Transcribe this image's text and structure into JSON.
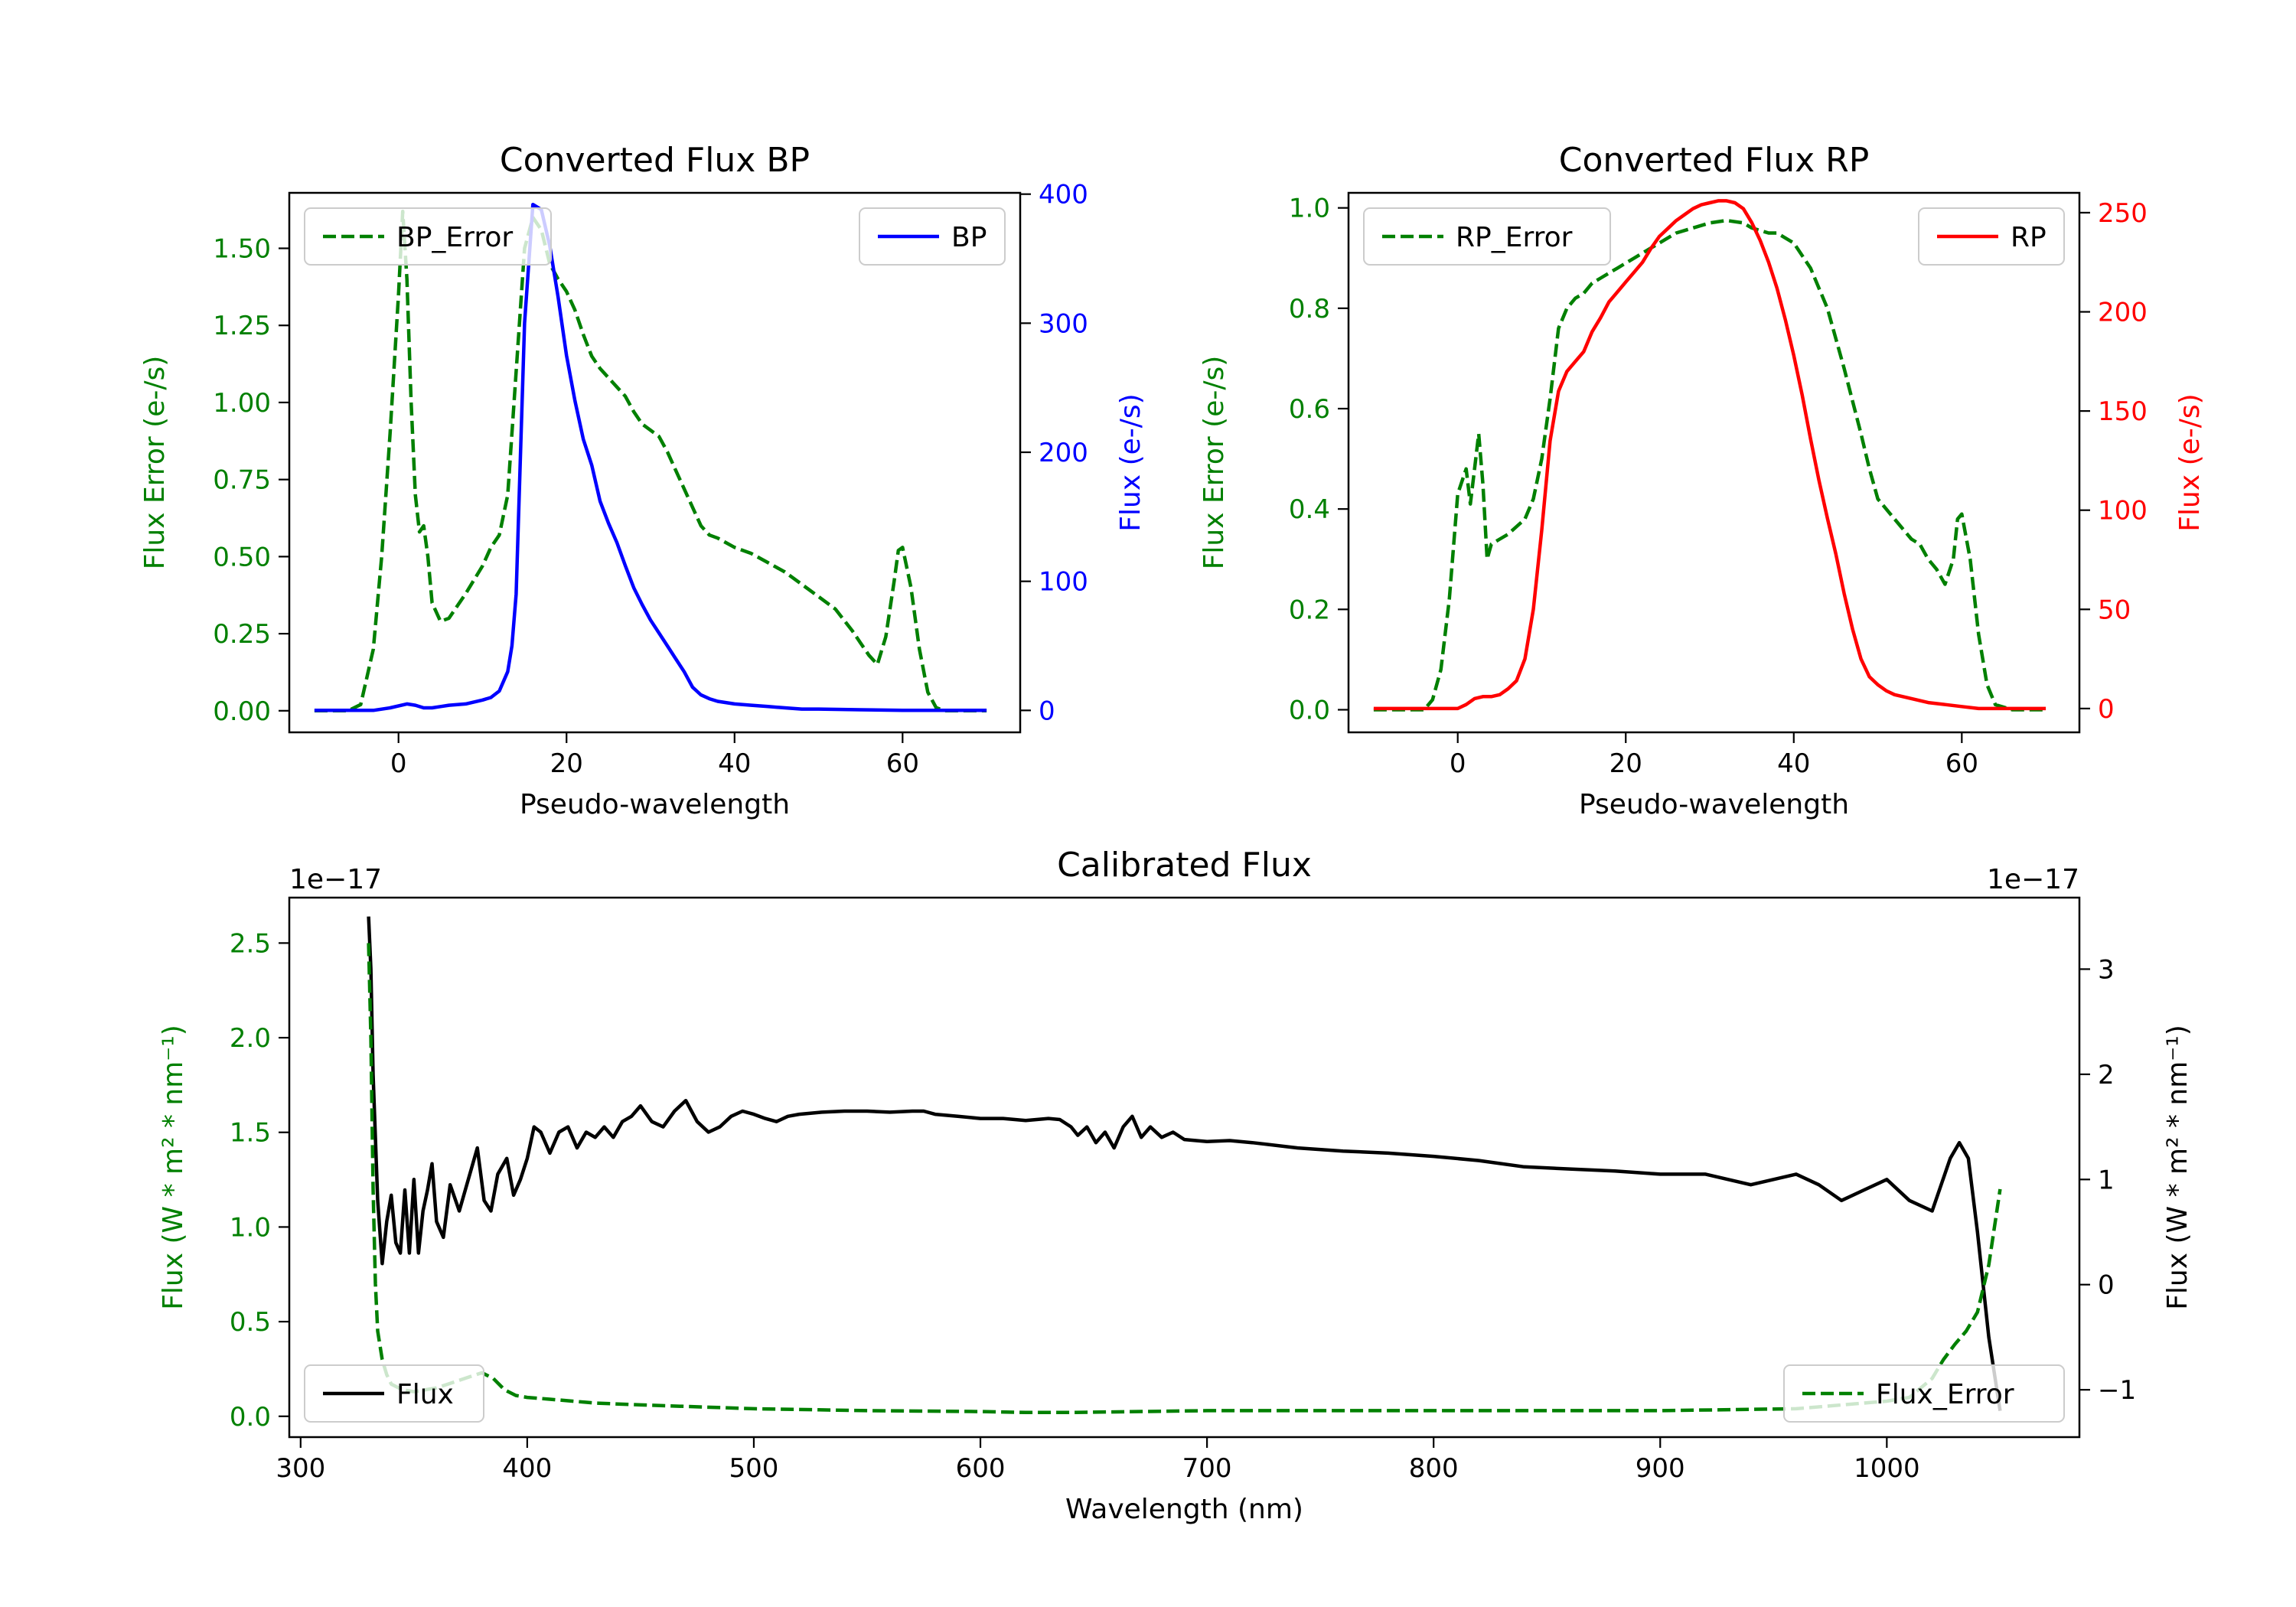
{
  "chart_data": [
    {
      "type": "line",
      "title": "Converted Flux BP",
      "xlabel": "Pseudo-wavelength",
      "xlim": [
        -13,
        74
      ],
      "xticks": [
        0,
        20,
        40,
        60
      ],
      "y_left": {
        "label": "Flux Error (e-/s)",
        "color": "#008000",
        "lim": [
          -0.07,
          1.68
        ],
        "ticks": [
          "0.00",
          "0.25",
          "0.50",
          "0.75",
          "1.00",
          "1.25",
          "1.50"
        ]
      },
      "y_right": {
        "label": "Flux (e-/s)",
        "color": "#0000ff",
        "lim": [
          -17,
          401
        ],
        "ticks": [
          "0",
          "100",
          "200",
          "300",
          "400"
        ]
      },
      "series": [
        {
          "name": "BP_Error",
          "axis": "left",
          "color": "#008000",
          "dash": true,
          "legend": "top-left",
          "x": [
            -10,
            -6,
            -4.5,
            -3,
            -2,
            -1,
            0,
            0.5,
            1,
            1.5,
            2,
            2.5,
            3,
            3.5,
            4,
            5,
            6,
            8,
            10,
            11,
            12,
            13,
            14,
            15,
            16,
            17,
            18,
            19,
            20,
            21,
            22,
            23,
            24,
            25,
            26,
            27,
            28,
            29,
            30,
            31,
            32,
            33,
            34,
            35,
            36,
            37,
            38,
            40,
            42,
            44,
            46,
            48,
            50,
            52,
            54,
            55,
            56,
            57,
            58,
            59,
            59.5,
            60,
            61,
            62,
            63,
            64,
            65,
            66,
            68,
            70
          ],
          "y": [
            0,
            0,
            0.02,
            0.2,
            0.5,
            0.9,
            1.35,
            1.62,
            1.4,
            1.0,
            0.7,
            0.58,
            0.6,
            0.5,
            0.35,
            0.29,
            0.3,
            0.38,
            0.47,
            0.53,
            0.57,
            0.7,
            1.1,
            1.5,
            1.6,
            1.56,
            1.45,
            1.4,
            1.36,
            1.3,
            1.22,
            1.15,
            1.11,
            1.08,
            1.05,
            1.02,
            0.97,
            0.93,
            0.91,
            0.89,
            0.84,
            0.78,
            0.72,
            0.66,
            0.6,
            0.57,
            0.56,
            0.53,
            0.51,
            0.48,
            0.45,
            0.41,
            0.37,
            0.33,
            0.26,
            0.22,
            0.18,
            0.15,
            0.24,
            0.42,
            0.52,
            0.53,
            0.4,
            0.2,
            0.06,
            0.01,
            0,
            0,
            0,
            0
          ]
        },
        {
          "name": "BP",
          "axis": "right",
          "color": "#0000ff",
          "dash": false,
          "legend": "top-right",
          "x": [
            -10,
            -3,
            -1,
            1,
            2,
            3,
            4,
            5,
            6,
            8,
            10,
            11,
            12,
            13,
            13.5,
            14,
            15,
            16,
            17,
            18,
            19,
            20,
            21,
            22,
            23,
            24,
            25,
            26,
            27,
            28,
            29,
            30,
            31,
            32,
            33,
            34,
            35,
            36,
            37,
            38,
            40,
            42,
            44,
            46,
            48,
            50,
            55,
            60,
            65,
            70
          ],
          "y": [
            0,
            0,
            2,
            5,
            4,
            2,
            2,
            3,
            4,
            5,
            8,
            10,
            15,
            30,
            50,
            90,
            300,
            392,
            388,
            360,
            320,
            275,
            240,
            210,
            190,
            162,
            145,
            130,
            112,
            95,
            82,
            70,
            60,
            50,
            40,
            30,
            18,
            12,
            9,
            7,
            5,
            4,
            3,
            2,
            1,
            1,
            0.5,
            0,
            0,
            0
          ]
        }
      ]
    },
    {
      "type": "line",
      "title": "Converted Flux RP",
      "xlabel": "Pseudo-wavelength",
      "xlim": [
        -13,
        74
      ],
      "xticks": [
        0,
        20,
        40,
        60
      ],
      "y_left": {
        "label": "Flux Error (e-/s)",
        "color": "#008000",
        "lim": [
          -0.045,
          1.03
        ],
        "ticks": [
          "0.0",
          "0.2",
          "0.4",
          "0.6",
          "0.8",
          "1.0"
        ]
      },
      "y_right": {
        "label": "Flux (e-/s)",
        "color": "#ff0000",
        "lim": [
          -12,
          260
        ],
        "ticks": [
          "0",
          "50",
          "100",
          "150",
          "200",
          "250"
        ]
      },
      "series": [
        {
          "name": "RP_Error",
          "axis": "left",
          "color": "#008000",
          "dash": true,
          "legend": "top-left",
          "x": [
            -10,
            -4,
            -3,
            -2,
            -1,
            0,
            1,
            1.5,
            2,
            2.5,
            3,
            3.5,
            4,
            5,
            6,
            8,
            9,
            10,
            11,
            12,
            13,
            14,
            15,
            16,
            17,
            18,
            19,
            20,
            21,
            22,
            23,
            24,
            26,
            28,
            30,
            32,
            34,
            35,
            36,
            37,
            38,
            40,
            42,
            44,
            46,
            48,
            49,
            50,
            52,
            54,
            55,
            56,
            57,
            58,
            59,
            59.5,
            60,
            61,
            62,
            63,
            64,
            66,
            70
          ],
          "y": [
            0,
            0,
            0.02,
            0.08,
            0.22,
            0.43,
            0.48,
            0.41,
            0.48,
            0.55,
            0.45,
            0.3,
            0.33,
            0.34,
            0.35,
            0.38,
            0.42,
            0.5,
            0.62,
            0.76,
            0.8,
            0.82,
            0.83,
            0.85,
            0.86,
            0.87,
            0.88,
            0.89,
            0.9,
            0.91,
            0.92,
            0.93,
            0.95,
            0.96,
            0.97,
            0.975,
            0.97,
            0.96,
            0.955,
            0.95,
            0.95,
            0.93,
            0.88,
            0.8,
            0.68,
            0.55,
            0.48,
            0.42,
            0.38,
            0.34,
            0.33,
            0.3,
            0.28,
            0.25,
            0.3,
            0.38,
            0.39,
            0.3,
            0.15,
            0.05,
            0.01,
            0,
            0
          ]
        },
        {
          "name": "RP",
          "axis": "right",
          "color": "#ff0000",
          "dash": false,
          "legend": "top-right",
          "x": [
            -10,
            -2,
            0,
            1,
            2,
            3,
            4,
            5,
            6,
            7,
            8,
            9,
            10,
            11,
            12,
            13,
            14,
            15,
            16,
            17,
            18,
            19,
            20,
            21,
            22,
            23,
            24,
            25,
            26,
            27,
            28,
            29,
            30,
            31,
            32,
            33,
            34,
            35,
            36,
            37,
            38,
            39,
            40,
            41,
            42,
            43,
            44,
            45,
            46,
            47,
            48,
            49,
            50,
            51,
            52,
            54,
            56,
            58,
            60,
            62,
            65,
            70
          ],
          "y": [
            0,
            0,
            0,
            2,
            5,
            6,
            6,
            7,
            10,
            14,
            25,
            50,
            90,
            135,
            160,
            170,
            175,
            180,
            190,
            197,
            205,
            210,
            215,
            220,
            225,
            232,
            238,
            242,
            246,
            249,
            252,
            254,
            255,
            256,
            256,
            255,
            252,
            245,
            236,
            225,
            212,
            196,
            178,
            158,
            136,
            115,
            96,
            78,
            58,
            40,
            25,
            16,
            12,
            9,
            7,
            5,
            3,
            2,
            1,
            0,
            0,
            0
          ]
        }
      ]
    },
    {
      "type": "line",
      "title": "Calibrated Flux",
      "xlabel": "Wavelength (nm)",
      "xlim": [
        295,
        1085
      ],
      "xticks": [
        300,
        400,
        500,
        600,
        700,
        800,
        900,
        1000
      ],
      "y_left": {
        "label": "Flux (W * m² * nm⁻¹)",
        "color": "#008000",
        "lim": [
          -0.11,
          2.74
        ],
        "ticks": [
          "0.0",
          "0.5",
          "1.0",
          "1.5",
          "2.0",
          "2.5"
        ],
        "offset": "1e−17"
      },
      "y_right": {
        "label": "Flux (W * m² * nm⁻¹)",
        "color": "#000000",
        "lim": [
          -1.45,
          3.68
        ],
        "ticks": [
          "−1",
          "0",
          "1",
          "2",
          "3"
        ],
        "offset": "1e−17"
      },
      "series": [
        {
          "name": "Flux",
          "axis": "right",
          "color": "#000000",
          "dash": false,
          "legend": "bottom-left",
          "x": [
            330,
            331,
            332,
            334,
            336,
            338,
            340,
            342,
            344,
            346,
            348,
            350,
            352,
            354,
            356,
            358,
            360,
            363,
            366,
            370,
            374,
            378,
            381,
            384,
            387,
            391,
            394,
            397,
            400,
            403,
            406,
            410,
            414,
            418,
            422,
            426,
            430,
            434,
            438,
            442,
            446,
            450,
            455,
            460,
            465,
            470,
            475,
            480,
            485,
            490,
            495,
            500,
            505,
            510,
            515,
            520,
            525,
            530,
            540,
            550,
            560,
            570,
            575,
            580,
            590,
            600,
            610,
            620,
            630,
            635,
            640,
            643,
            647,
            651,
            655,
            659,
            663,
            667,
            671,
            675,
            680,
            685,
            690,
            700,
            710,
            720,
            740,
            760,
            780,
            800,
            820,
            840,
            860,
            880,
            900,
            920,
            940,
            950,
            960,
            970,
            980,
            990,
            1000,
            1010,
            1020,
            1028,
            1032,
            1036,
            1040,
            1045,
            1050
          ],
          "y": [
            3.5,
            3.0,
            2.0,
            0.8,
            0.2,
            0.6,
            0.85,
            0.4,
            0.3,
            0.9,
            0.3,
            1.0,
            0.3,
            0.7,
            0.9,
            1.15,
            0.6,
            0.45,
            0.95,
            0.7,
            1.0,
            1.3,
            0.8,
            0.7,
            1.05,
            1.2,
            0.85,
            1.0,
            1.2,
            1.5,
            1.45,
            1.25,
            1.45,
            1.5,
            1.3,
            1.45,
            1.4,
            1.5,
            1.4,
            1.55,
            1.6,
            1.7,
            1.55,
            1.5,
            1.65,
            1.75,
            1.55,
            1.45,
            1.5,
            1.6,
            1.65,
            1.62,
            1.58,
            1.55,
            1.6,
            1.62,
            1.63,
            1.64,
            1.65,
            1.65,
            1.64,
            1.65,
            1.65,
            1.62,
            1.6,
            1.58,
            1.58,
            1.56,
            1.58,
            1.57,
            1.5,
            1.42,
            1.5,
            1.35,
            1.45,
            1.3,
            1.5,
            1.6,
            1.4,
            1.5,
            1.4,
            1.45,
            1.38,
            1.36,
            1.37,
            1.35,
            1.3,
            1.27,
            1.25,
            1.22,
            1.18,
            1.12,
            1.1,
            1.08,
            1.05,
            1.05,
            0.95,
            1.0,
            1.05,
            0.95,
            0.8,
            0.9,
            1.0,
            0.8,
            0.7,
            1.2,
            1.35,
            1.2,
            0.5,
            -0.5,
            -1.2
          ]
        },
        {
          "name": "Flux_Error",
          "axis": "left",
          "color": "#008000",
          "dash": true,
          "legend": "bottom-right",
          "x": [
            330,
            331,
            332,
            333,
            334,
            336,
            338,
            340,
            345,
            350,
            355,
            360,
            365,
            370,
            375,
            380,
            385,
            390,
            395,
            400,
            410,
            420,
            430,
            450,
            500,
            550,
            600,
            620,
            640,
            700,
            800,
            900,
            960,
            1000,
            1010,
            1020,
            1025,
            1030,
            1035,
            1040,
            1045,
            1050
          ],
          "y": [
            2.5,
            2.0,
            1.2,
            0.7,
            0.45,
            0.3,
            0.22,
            0.17,
            0.14,
            0.13,
            0.14,
            0.15,
            0.17,
            0.19,
            0.21,
            0.23,
            0.2,
            0.14,
            0.11,
            0.1,
            0.09,
            0.08,
            0.07,
            0.06,
            0.04,
            0.03,
            0.025,
            0.02,
            0.02,
            0.03,
            0.03,
            0.03,
            0.04,
            0.08,
            0.1,
            0.2,
            0.3,
            0.38,
            0.45,
            0.55,
            0.8,
            1.2
          ]
        }
      ]
    }
  ]
}
